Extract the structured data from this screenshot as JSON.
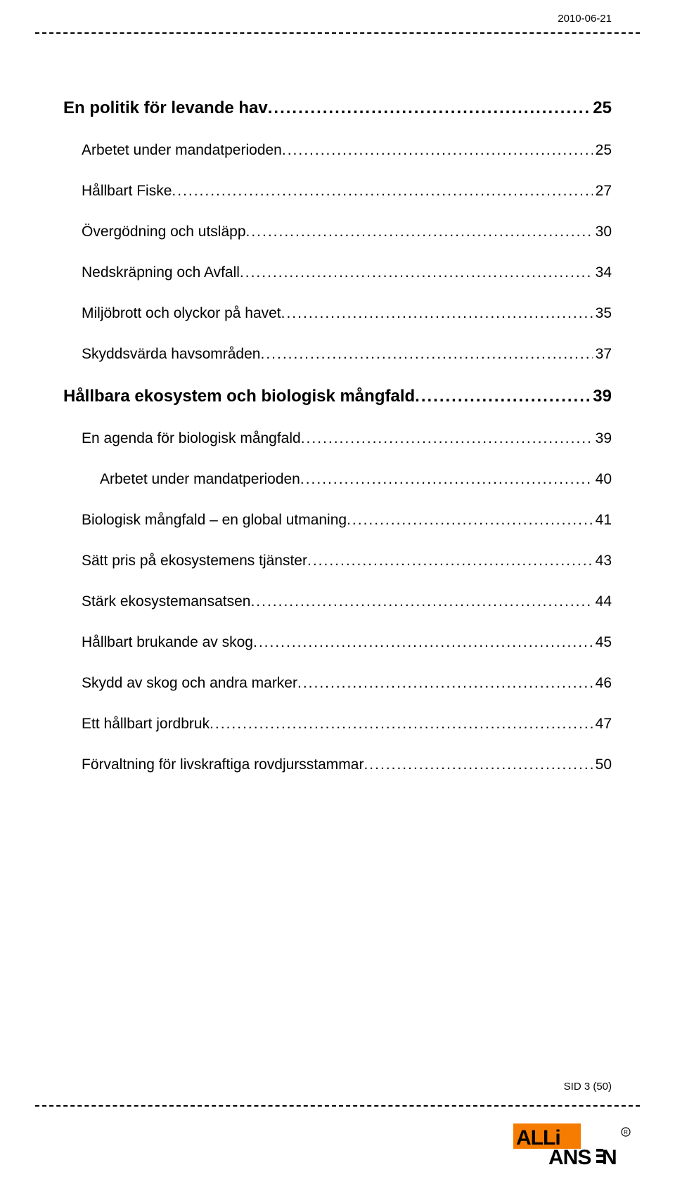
{
  "header": {
    "date": "2010-06-21"
  },
  "toc": [
    {
      "label": "En politik för levande hav",
      "page": "25",
      "level": 0
    },
    {
      "label": "Arbetet under mandatperioden",
      "page": "25",
      "level": 1
    },
    {
      "label": "Hållbart Fiske",
      "page": "27",
      "level": 1
    },
    {
      "label": "Övergödning och utsläpp",
      "page": "30",
      "level": 1
    },
    {
      "label": "Nedskräpning och Avfall",
      "page": "34",
      "level": 1
    },
    {
      "label": "Miljöbrott och olyckor på havet",
      "page": "35",
      "level": 1
    },
    {
      "label": "Skyddsvärda havsområden",
      "page": "37",
      "level": 1
    },
    {
      "label": "Hållbara ekosystem och biologisk mångfald",
      "page": "39",
      "level": 0
    },
    {
      "label": "En agenda för biologisk mångfald",
      "page": "39",
      "level": 1
    },
    {
      "label": "Arbetet under mandatperioden",
      "page": "40",
      "level": 2
    },
    {
      "label": "Biologisk mångfald – en global utmaning",
      "page": "41",
      "level": 1
    },
    {
      "label": "Sätt pris på ekosystemens tjänster",
      "page": "43",
      "level": 1
    },
    {
      "label": "Stärk ekosystemansatsen",
      "page": "44",
      "level": 1
    },
    {
      "label": "Hållbart brukande av skog",
      "page": "45",
      "level": 1
    },
    {
      "label": "Skydd av skog och andra marker",
      "page": "46",
      "level": 1
    },
    {
      "label": "Ett hållbart jordbruk",
      "page": "47",
      "level": 1
    },
    {
      "label": "Förvaltning för livskraftiga rovdjursstammar",
      "page": "50",
      "level": 1
    }
  ],
  "footer": {
    "page_text": "SID 3 (50)"
  },
  "logo": {
    "text_upper": "ALLi",
    "text_lower": "ANSEN",
    "color_box": "#f57c00",
    "color_text": "#000000"
  },
  "style": {
    "font_family": "Arial",
    "dash_color": "#000000",
    "background": "#ffffff",
    "lvl0_fontsize_pt": 18,
    "lvl1_fontsize_pt": 16,
    "date_fontsize_pt": 11
  }
}
